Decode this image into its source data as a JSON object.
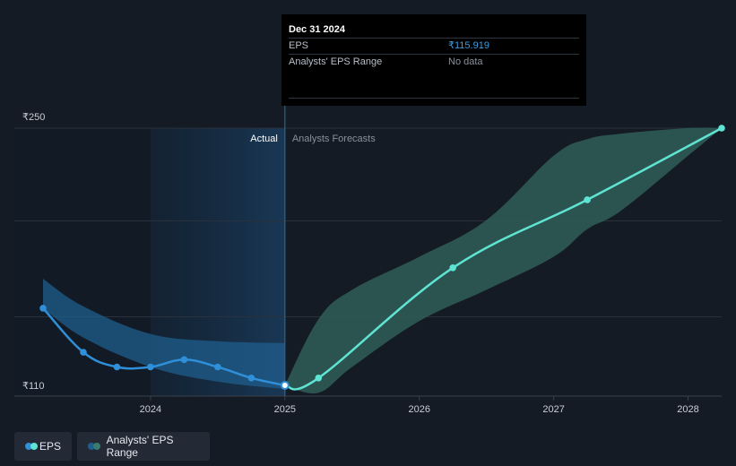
{
  "tooltip": {
    "date": "Dec 31 2024",
    "rows": [
      {
        "label": "EPS",
        "value": "₹115.919"
      },
      {
        "label": "Analysts' EPS Range",
        "value": "No data"
      }
    ]
  },
  "legend": {
    "items": [
      {
        "label": "EPS",
        "colors": [
          "#2f8fd8",
          "#5fe3d2"
        ]
      },
      {
        "label": "Analysts' EPS Range",
        "colors": [
          "#1f5e8c",
          "#3a7a70"
        ]
      }
    ]
  },
  "chart_data": {
    "type": "line",
    "y_labels": [
      "₹250",
      "₹110"
    ],
    "ylim": [
      110,
      250
    ],
    "section_labels": {
      "actual": "Actual",
      "forecast": "Analysts Forecasts"
    },
    "x_ticks": [
      {
        "label": "2024",
        "x": 2024.0
      },
      {
        "label": "2025",
        "x": 2025.0
      },
      {
        "label": "2026",
        "x": 2026.0
      },
      {
        "label": "2027",
        "x": 2027.0
      },
      {
        "label": "2028",
        "x": 2028.0
      }
    ],
    "xlim": [
      2023.2,
      2028.25
    ],
    "divider_x": 2025.0,
    "highlight_start_x": 2024.0,
    "grid": true,
    "colors": {
      "actual_line": "#2f8fd8",
      "forecast_line": "#5fe3d2",
      "actual_band": "#1f5e8c",
      "forecast_band": "#2f5e58"
    },
    "series": [
      {
        "name": "EPS",
        "kind": "actual",
        "x": [
          2023.2,
          2023.5,
          2023.75,
          2024.0,
          2024.25,
          2024.5,
          2024.75,
          2025.0
        ],
        "y": [
          152,
          128,
          120,
          120,
          124,
          120,
          114,
          110
        ]
      },
      {
        "name": "EPS",
        "kind": "forecast",
        "x": [
          2025.0,
          2025.25,
          2026.25,
          2027.25,
          2028.25
        ],
        "y": [
          110,
          114,
          174,
          211,
          250
        ]
      }
    ],
    "ranges": [
      {
        "name": "Analysts' EPS Range",
        "kind": "actual",
        "x": [
          2023.2,
          2023.5,
          2024.0,
          2024.5,
          2025.0
        ],
        "upper": [
          168,
          153,
          138,
          134,
          133
        ],
        "lower": [
          152,
          136,
          120,
          112,
          108
        ]
      },
      {
        "name": "Analysts' EPS Range",
        "kind": "forecast",
        "x": [
          2025.0,
          2025.25,
          2025.5,
          2026.0,
          2026.5,
          2027.0,
          2027.25,
          2027.5,
          2028.0,
          2028.25
        ],
        "upper": [
          110,
          146,
          162,
          180,
          200,
          235,
          244,
          247,
          250,
          250
        ],
        "lower": [
          110,
          106,
          120,
          145,
          162,
          180,
          195,
          205,
          235,
          250
        ]
      }
    ]
  }
}
